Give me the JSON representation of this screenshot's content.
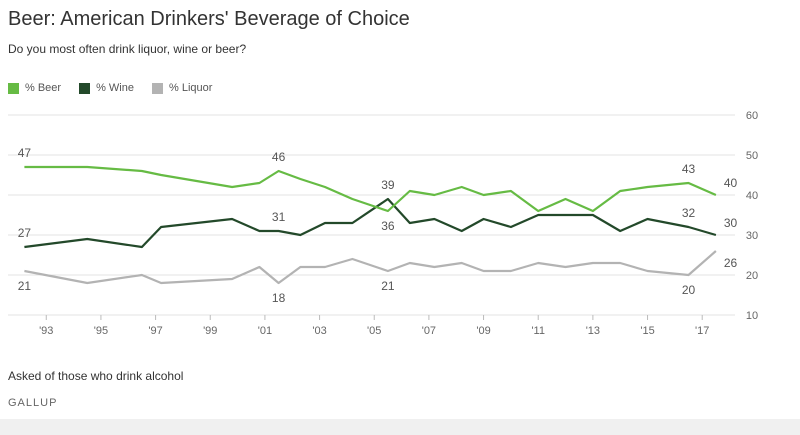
{
  "chart_data": {
    "type": "line",
    "title": "Beer: American Drinkers' Beverage of Choice",
    "subtitle": "Do you most often drink liquor, wine or beer?",
    "xlabel": "",
    "ylabel": "",
    "ylim": [
      10,
      60
    ],
    "y_ticks": [
      10,
      20,
      30,
      40,
      50,
      60
    ],
    "x_ticks": [
      {
        "x": 1993,
        "label": "'93"
      },
      {
        "x": 1995,
        "label": "'95"
      },
      {
        "x": 1997,
        "label": "'97"
      },
      {
        "x": 1999,
        "label": "'99"
      },
      {
        "x": 2001,
        "label": "'01"
      },
      {
        "x": 2003,
        "label": "'03"
      },
      {
        "x": 2005,
        "label": "'05"
      },
      {
        "x": 2007,
        "label": "'07"
      },
      {
        "x": 2009,
        "label": "'09"
      },
      {
        "x": 2011,
        "label": "'11"
      },
      {
        "x": 2013,
        "label": "'13"
      },
      {
        "x": 2015,
        "label": "'15"
      },
      {
        "x": 2017,
        "label": "'17"
      }
    ],
    "x": [
      1992.2,
      1994.5,
      1996.5,
      1997.2,
      1999.8,
      2000.8,
      2001.5,
      2002.3,
      2003.2,
      2004.2,
      2005.5,
      2006.3,
      2007.2,
      2008.2,
      2009.0,
      2010.0,
      2011.0,
      2012.0,
      2013.0,
      2014.0,
      2015.0,
      2016.5,
      2017.5
    ],
    "grid": true,
    "legend_position": "top-left",
    "series": [
      {
        "name": "% Beer",
        "color": "#66bb44",
        "values": [
          47,
          47,
          46,
          45,
          42,
          43,
          46,
          44,
          42,
          39,
          36,
          41,
          40,
          42,
          40,
          41,
          36,
          39,
          36,
          41,
          42,
          43,
          40
        ]
      },
      {
        "name": "% Wine",
        "color": "#23492a",
        "values": [
          27,
          29,
          27,
          32,
          34,
          31,
          31,
          30,
          33,
          33,
          39,
          33,
          34,
          31,
          34,
          32,
          35,
          35,
          35,
          31,
          34,
          32,
          30
        ]
      },
      {
        "name": "% Liquor",
        "color": "#b3b3b3",
        "values": [
          21,
          18,
          20,
          18,
          19,
          22,
          18,
          22,
          22,
          24,
          21,
          23,
          22,
          23,
          21,
          21,
          23,
          22,
          23,
          23,
          21,
          20,
          26
        ]
      }
    ],
    "annotations": [
      {
        "series": 0,
        "point": 0,
        "text": "47",
        "pos": "above"
      },
      {
        "series": 1,
        "point": 0,
        "text": "27",
        "pos": "above"
      },
      {
        "series": 2,
        "point": 0,
        "text": "21",
        "pos": "below"
      },
      {
        "series": 0,
        "point": 6,
        "text": "46",
        "pos": "above"
      },
      {
        "series": 1,
        "point": 6,
        "text": "31",
        "pos": "above"
      },
      {
        "series": 2,
        "point": 6,
        "text": "18",
        "pos": "below"
      },
      {
        "series": 1,
        "point": 10,
        "text": "39",
        "pos": "above"
      },
      {
        "series": 0,
        "point": 10,
        "text": "36",
        "pos": "below"
      },
      {
        "series": 2,
        "point": 10,
        "text": "21",
        "pos": "below"
      },
      {
        "series": 0,
        "point": 21,
        "text": "43",
        "pos": "above"
      },
      {
        "series": 1,
        "point": 21,
        "text": "32",
        "pos": "above"
      },
      {
        "series": 2,
        "point": 21,
        "text": "20",
        "pos": "below"
      },
      {
        "series": 0,
        "point": 22,
        "text": "40",
        "pos": "right-above"
      },
      {
        "series": 1,
        "point": 22,
        "text": "30",
        "pos": "right-above"
      },
      {
        "series": 2,
        "point": 22,
        "text": "26",
        "pos": "right-below"
      }
    ]
  },
  "note": "Asked of those who drink alcohol",
  "source": "GALLUP"
}
